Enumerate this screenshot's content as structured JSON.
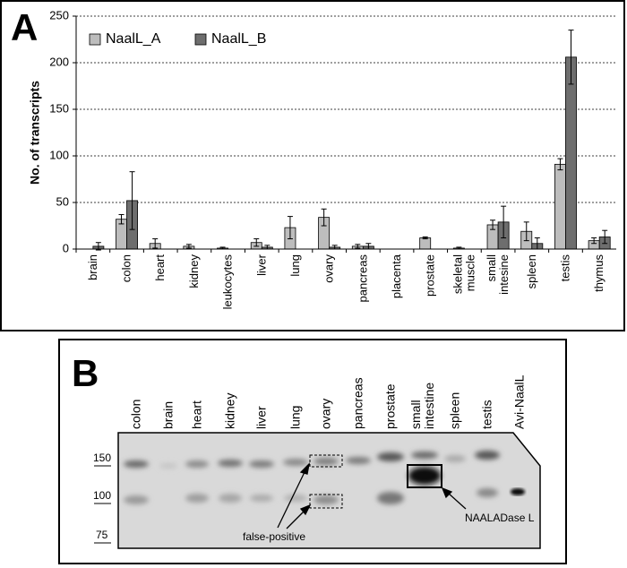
{
  "chart_data": {
    "type": "bar",
    "panel_label": "A",
    "ylabel": "No. of transcripts",
    "categories": [
      "brain",
      "colon",
      "heart",
      "kidney",
      "leukocytes",
      "liver",
      "lung",
      "ovary",
      "pancreas",
      "placenta",
      "prostate",
      "skeletal muscle",
      "small intesine",
      "spleen",
      "testis",
      "thymus"
    ],
    "series": [
      {
        "name": "NaalL_A",
        "color": "#bdbdbd",
        "values": [
          0,
          32,
          6,
          3,
          1,
          7,
          23,
          34,
          3,
          0,
          12,
          1,
          26,
          19,
          91,
          9
        ],
        "errors": [
          0,
          5,
          5,
          2,
          1,
          4,
          12,
          9,
          2,
          0,
          1,
          1,
          5,
          10,
          6,
          3
        ]
      },
      {
        "name": "NaalL_B",
        "color": "#6e6e6e",
        "values": [
          3,
          52,
          0,
          0,
          0,
          2,
          0,
          2,
          3,
          0,
          0,
          0,
          29,
          6,
          206,
          13
        ],
        "errors": [
          4,
          31,
          0,
          0,
          0,
          2,
          0,
          2,
          3,
          0,
          0,
          0,
          17,
          6,
          29,
          7
        ]
      }
    ],
    "ylim": [
      0,
      250
    ],
    "yticks": [
      0,
      50,
      100,
      150,
      200,
      250
    ],
    "grid": true,
    "legend": "upper left"
  },
  "blot": {
    "panel_label": "B",
    "lanes": [
      "colon",
      "brain",
      "heart",
      "kidney",
      "liver",
      "lung",
      "ovary",
      "pancreas",
      "prostate",
      "small intestine",
      "spleen",
      "testis",
      "Avi-NaalL"
    ],
    "markers": [
      150,
      100,
      75
    ],
    "annotations": [
      "false-positive",
      "NAALADase L"
    ]
  }
}
